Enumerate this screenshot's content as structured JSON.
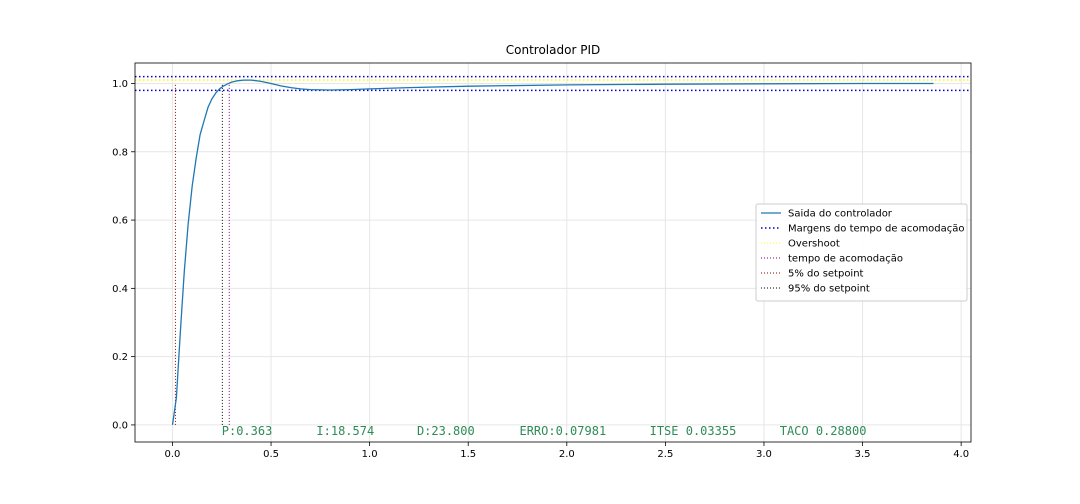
{
  "chart_data": {
    "type": "line",
    "title": "Controlador PID",
    "xlabel": "",
    "ylabel": "",
    "xlim": [
      -0.19,
      4.05
    ],
    "ylim": [
      -0.05,
      1.06
    ],
    "xticks": [
      0.0,
      0.5,
      1.0,
      1.5,
      2.0,
      2.5,
      3.0,
      3.5,
      4.0
    ],
    "xtick_labels": [
      "0.0",
      "0.5",
      "1.0",
      "1.5",
      "2.0",
      "2.5",
      "3.0",
      "3.5",
      "4.0"
    ],
    "yticks": [
      0.0,
      0.2,
      0.4,
      0.6,
      0.8,
      1.0
    ],
    "ytick_labels": [
      "0.0",
      "0.2",
      "0.4",
      "0.6",
      "0.8",
      "1.0"
    ],
    "grid": true,
    "legend_position": "center-right",
    "series": [
      {
        "name": "Saida do controlador",
        "color": "#1f77b4",
        "style": "solid",
        "x": [
          0.0,
          0.02,
          0.04,
          0.06,
          0.08,
          0.1,
          0.12,
          0.14,
          0.16,
          0.18,
          0.2,
          0.22,
          0.24,
          0.26,
          0.28,
          0.3,
          0.33,
          0.36,
          0.4,
          0.45,
          0.5,
          0.55,
          0.6,
          0.65,
          0.7,
          0.8,
          0.9,
          1.0,
          1.2,
          1.5,
          2.0,
          2.5,
          3.0,
          3.5,
          3.86
        ],
        "y": [
          0.0,
          0.08,
          0.27,
          0.45,
          0.59,
          0.7,
          0.78,
          0.85,
          0.89,
          0.93,
          0.955,
          0.972,
          0.985,
          0.993,
          0.999,
          1.004,
          1.008,
          1.01,
          1.01,
          1.006,
          1.0,
          0.993,
          0.988,
          0.984,
          0.982,
          0.981,
          0.982,
          0.984,
          0.988,
          0.992,
          0.996,
          0.998,
          0.999,
          1.0,
          1.0
        ]
      },
      {
        "name": "Margens do tempo de acomodação",
        "color": "#0000cc",
        "style": "dotted-horizontal",
        "y": [
          1.02,
          0.98
        ]
      },
      {
        "name": "Overshoot",
        "color": "#ffff00",
        "style": "dotted-horizontal",
        "y": [
          1.01
        ]
      },
      {
        "name": "tempo de acomodação",
        "color": "#800080",
        "style": "dotted-vertical",
        "x": [
          0.288
        ]
      },
      {
        "name": "5% do setpoint",
        "color": "#8b0000",
        "style": "dotted-vertical",
        "x": [
          0.015
        ]
      },
      {
        "name": "95% do setpoint",
        "color": "#000000",
        "style": "dotted-vertical",
        "x": [
          0.253
        ]
      }
    ]
  },
  "annotations": [
    {
      "text": "P:0.363",
      "x": 0.25,
      "y": -0.03
    },
    {
      "text": "I:18.574",
      "x": 0.73,
      "y": -0.03
    },
    {
      "text": "D:23.800",
      "x": 1.24,
      "y": -0.03
    },
    {
      "text": "ERRO:0.07981",
      "x": 1.76,
      "y": -0.03
    },
    {
      "text": "ITSE 0.03355",
      "x": 2.42,
      "y": -0.03
    },
    {
      "text": "TACO 0.28800",
      "x": 3.08,
      "y": -0.03
    }
  ],
  "annotation_color": "#2e8b57"
}
